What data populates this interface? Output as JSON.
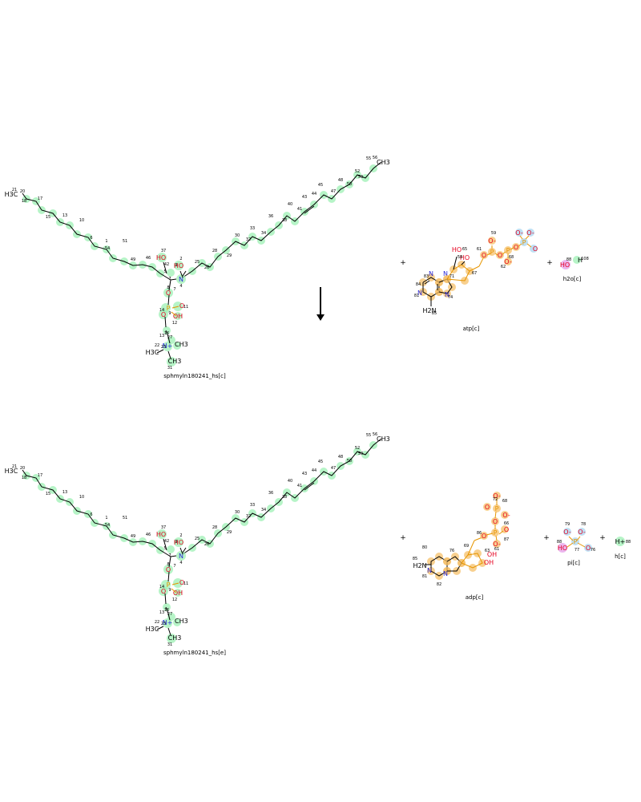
{
  "colors": {
    "highlight_green": "#9df0b4",
    "highlight_orange": "#f5c06a",
    "highlight_blue": "#a9d6f0",
    "highlight_magenta": "#e49ee8",
    "bond": "#000000",
    "atom_oxygen": "#e6001f",
    "atom_nitrogen": "#2828d8"
  },
  "reaction": {
    "reactants": [
      {
        "id": "sphmyln180241_hs[c]",
        "label": "sphmyln180241_hs[c]"
      },
      {
        "id": "atp[c]",
        "label": "atp[c]"
      },
      {
        "id": "h2o[c]",
        "label": "h2o[c]"
      }
    ],
    "products": [
      {
        "id": "sphmyln180241_hs[e]",
        "label": "sphmyln180241_hs[e]"
      },
      {
        "id": "adp[c]",
        "label": "adp[c]"
      },
      {
        "id": "pi[c]",
        "label": "pi[c]"
      },
      {
        "id": "h[c]",
        "label": "h[c]"
      }
    ],
    "plus": "+",
    "arrow": "reaction-arrow"
  },
  "atoms": {
    "h3c": "H3C",
    "ch3": "CH3",
    "ho": "HO",
    "oh": "OH",
    "h2n": "H2N",
    "n": "N",
    "o": "O",
    "o_minus": "O-",
    "p": "P",
    "h": "H",
    "h_plus": "H+",
    "n_plus": "N+"
  }
}
